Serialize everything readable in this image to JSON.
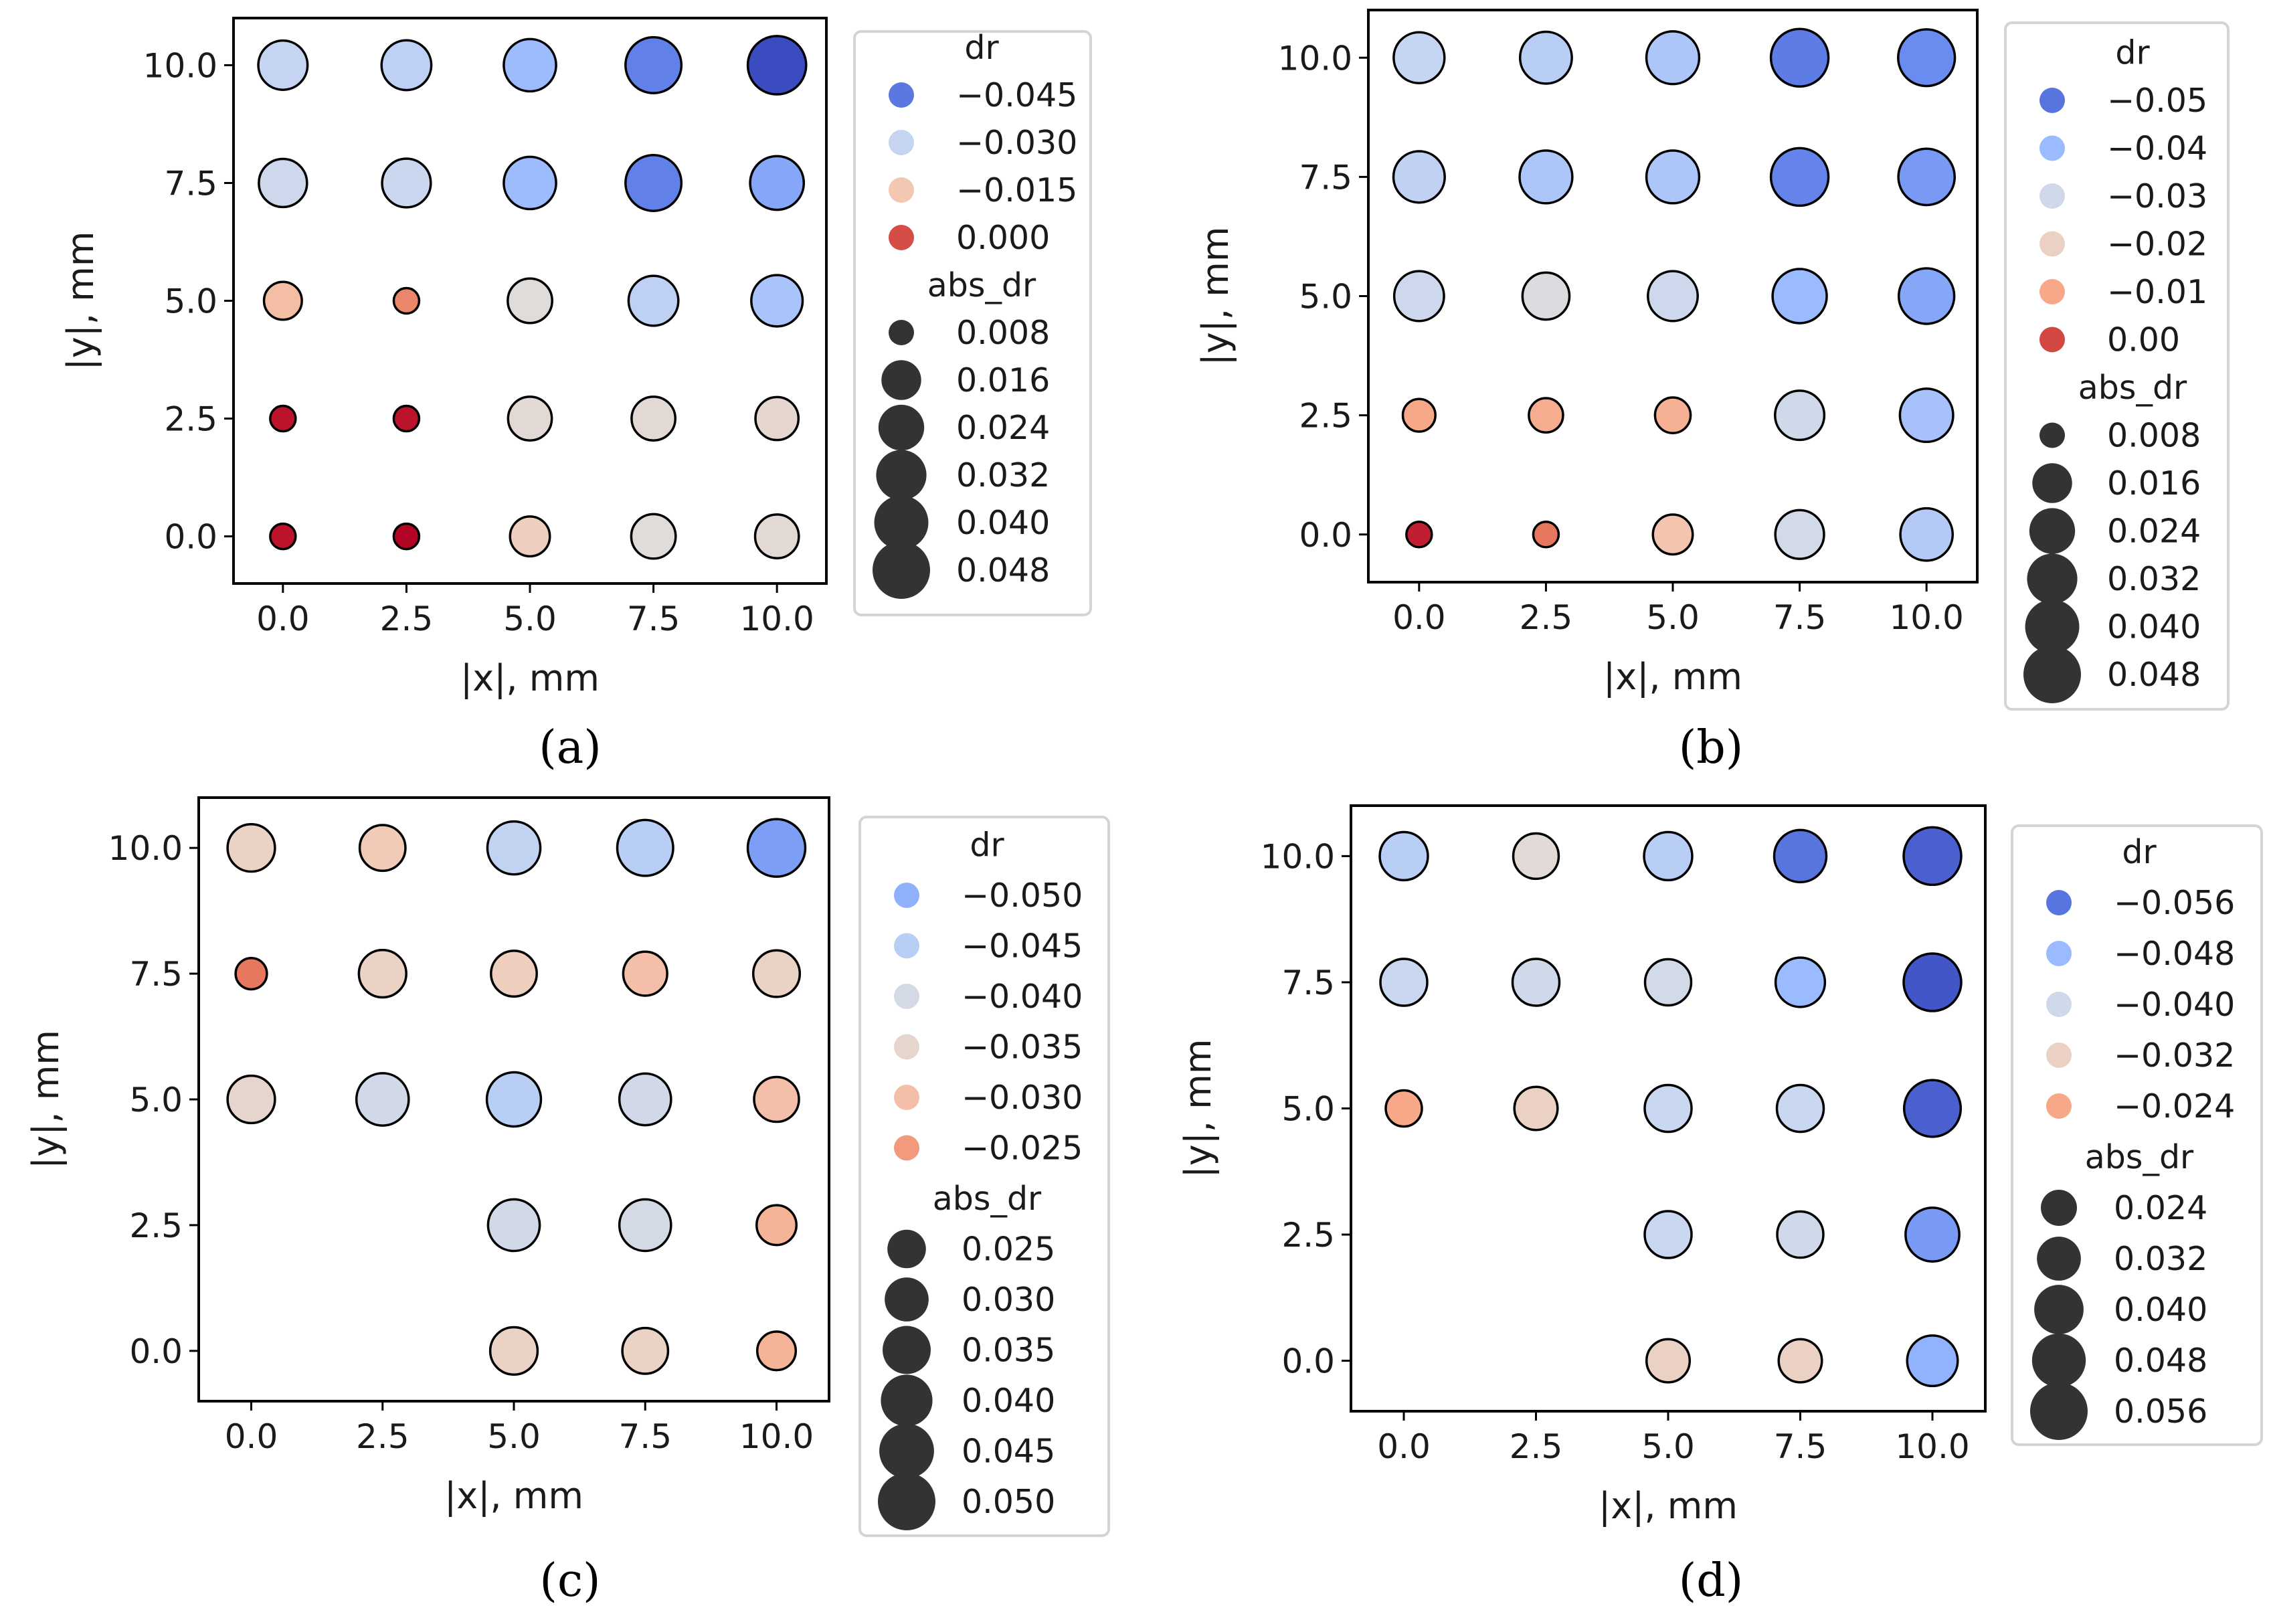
{
  "colormap": {
    "name": "coolwarm",
    "stops": [
      "#3b4cc0",
      "#6788ee",
      "#9abbff",
      "#c9d7f0",
      "#dddddd",
      "#f2cbb7",
      "#f7a889",
      "#e26952",
      "#b40426"
    ]
  },
  "chart_data": [
    {
      "type": "scatter",
      "panel_label": "(a)",
      "xlabel": "|x|, mm",
      "ylabel": "|y|, mm",
      "xticks": [
        "0.0",
        "2.5",
        "5.0",
        "7.5",
        "10.0"
      ],
      "yticks": [
        "0.0",
        "2.5",
        "5.0",
        "7.5",
        "10.0"
      ],
      "xlim": [
        -1,
        11
      ],
      "ylim": [
        -1,
        11
      ],
      "dr_range": [
        -0.05,
        0.005
      ],
      "size_range": [
        0.008,
        0.048
      ],
      "points": [
        {
          "x": 0,
          "y": 10,
          "dr": -0.03,
          "abs_dr": 0.03
        },
        {
          "x": 2.5,
          "y": 10,
          "dr": -0.031,
          "abs_dr": 0.031
        },
        {
          "x": 5,
          "y": 10,
          "dr": -0.036,
          "abs_dr": 0.036
        },
        {
          "x": 7.5,
          "y": 10,
          "dr": -0.044,
          "abs_dr": 0.044
        },
        {
          "x": 10,
          "y": 10,
          "dr": -0.05,
          "abs_dr": 0.05
        },
        {
          "x": 0,
          "y": 7.5,
          "dr": -0.028,
          "abs_dr": 0.028
        },
        {
          "x": 2.5,
          "y": 7.5,
          "dr": -0.029,
          "abs_dr": 0.029
        },
        {
          "x": 5,
          "y": 7.5,
          "dr": -0.036,
          "abs_dr": 0.036
        },
        {
          "x": 7.5,
          "y": 7.5,
          "dr": -0.044,
          "abs_dr": 0.044
        },
        {
          "x": 10,
          "y": 7.5,
          "dr": -0.039,
          "abs_dr": 0.039
        },
        {
          "x": 0,
          "y": 5,
          "dr": -0.013,
          "abs_dr": 0.014
        },
        {
          "x": 2.5,
          "y": 5,
          "dr": -0.005,
          "abs_dr": 0.006
        },
        {
          "x": 5,
          "y": 5,
          "dr": -0.022,
          "abs_dr": 0.022
        },
        {
          "x": 7.5,
          "y": 5,
          "dr": -0.031,
          "abs_dr": 0.031
        },
        {
          "x": 10,
          "y": 5,
          "dr": -0.034,
          "abs_dr": 0.034
        },
        {
          "x": 0,
          "y": 2.5,
          "dr": 0.004,
          "abs_dr": 0.004
        },
        {
          "x": 2.5,
          "y": 2.5,
          "dr": 0.004,
          "abs_dr": 0.004
        },
        {
          "x": 5,
          "y": 2.5,
          "dr": -0.021,
          "abs_dr": 0.021
        },
        {
          "x": 7.5,
          "y": 2.5,
          "dr": -0.021,
          "abs_dr": 0.021
        },
        {
          "x": 10,
          "y": 2.5,
          "dr": -0.02,
          "abs_dr": 0.02
        },
        {
          "x": 0,
          "y": 0,
          "dr": 0.004,
          "abs_dr": 0.004
        },
        {
          "x": 2.5,
          "y": 0,
          "dr": 0.006,
          "abs_dr": 0.006
        },
        {
          "x": 5,
          "y": 0,
          "dr": -0.017,
          "abs_dr": 0.016
        },
        {
          "x": 7.5,
          "y": 0,
          "dr": -0.022,
          "abs_dr": 0.022
        },
        {
          "x": 10,
          "y": 0,
          "dr": -0.021,
          "abs_dr": 0.021
        }
      ],
      "legend": {
        "color_title": "dr",
        "color_entries": [
          {
            "label": "−0.045",
            "dr": -0.045
          },
          {
            "label": "−0.030",
            "dr": -0.03
          },
          {
            "label": "−0.015",
            "dr": -0.015
          },
          {
            "label": "0.000",
            "dr": 0.0
          }
        ],
        "size_title": "abs_dr",
        "size_entries": [
          {
            "label": "0.008",
            "value": 0.008
          },
          {
            "label": "0.016",
            "value": 0.016
          },
          {
            "label": "0.024",
            "value": 0.024
          },
          {
            "label": "0.032",
            "value": 0.032
          },
          {
            "label": "0.040",
            "value": 0.04
          },
          {
            "label": "0.048",
            "value": 0.048
          }
        ]
      }
    },
    {
      "type": "scatter",
      "panel_label": "(b)",
      "xlabel": "|x|, mm",
      "ylabel": "|y|, mm",
      "xticks": [
        "0.0",
        "2.5",
        "5.0",
        "7.5",
        "10.0"
      ],
      "yticks": [
        "0.0",
        "2.5",
        "5.0",
        "7.5",
        "10.0"
      ],
      "xlim": [
        -1,
        11
      ],
      "ylim": [
        -1,
        11
      ],
      "dr_range": [
        -0.055,
        0.005
      ],
      "size_range": [
        0.008,
        0.048
      ],
      "points": [
        {
          "x": 0,
          "y": 10,
          "dr": -0.033,
          "abs_dr": 0.033
        },
        {
          "x": 2.5,
          "y": 10,
          "dr": -0.035,
          "abs_dr": 0.035
        },
        {
          "x": 5,
          "y": 10,
          "dr": -0.037,
          "abs_dr": 0.037
        },
        {
          "x": 7.5,
          "y": 10,
          "dr": -0.049,
          "abs_dr": 0.048
        },
        {
          "x": 10,
          "y": 10,
          "dr": -0.047,
          "abs_dr": 0.046
        },
        {
          "x": 0,
          "y": 7.5,
          "dr": -0.034,
          "abs_dr": 0.034
        },
        {
          "x": 2.5,
          "y": 7.5,
          "dr": -0.037,
          "abs_dr": 0.037
        },
        {
          "x": 5,
          "y": 7.5,
          "dr": -0.037,
          "abs_dr": 0.037
        },
        {
          "x": 7.5,
          "y": 7.5,
          "dr": -0.048,
          "abs_dr": 0.048
        },
        {
          "x": 10,
          "y": 7.5,
          "dr": -0.045,
          "abs_dr": 0.045
        },
        {
          "x": 0,
          "y": 5,
          "dr": -0.031,
          "abs_dr": 0.031
        },
        {
          "x": 2.5,
          "y": 5,
          "dr": -0.026,
          "abs_dr": 0.026
        },
        {
          "x": 5,
          "y": 5,
          "dr": -0.031,
          "abs_dr": 0.031
        },
        {
          "x": 7.5,
          "y": 5,
          "dr": -0.04,
          "abs_dr": 0.04
        },
        {
          "x": 10,
          "y": 5,
          "dr": -0.043,
          "abs_dr": 0.043
        },
        {
          "x": 0,
          "y": 2.5,
          "dr": -0.01,
          "abs_dr": 0.01
        },
        {
          "x": 2.5,
          "y": 2.5,
          "dr": -0.011,
          "abs_dr": 0.011
        },
        {
          "x": 5,
          "y": 2.5,
          "dr": -0.012,
          "abs_dr": 0.012
        },
        {
          "x": 7.5,
          "y": 2.5,
          "dr": -0.03,
          "abs_dr": 0.03
        },
        {
          "x": 10,
          "y": 2.5,
          "dr": -0.038,
          "abs_dr": 0.038
        },
        {
          "x": 0,
          "y": 0,
          "dr": 0.003,
          "abs_dr": 0.004
        },
        {
          "x": 2.5,
          "y": 0,
          "dr": -0.004,
          "abs_dr": 0.004
        },
        {
          "x": 5,
          "y": 0,
          "dr": -0.016,
          "abs_dr": 0.016
        },
        {
          "x": 7.5,
          "y": 0,
          "dr": -0.029,
          "abs_dr": 0.029
        },
        {
          "x": 10,
          "y": 0,
          "dr": -0.036,
          "abs_dr": 0.036
        }
      ],
      "legend": {
        "color_title": "dr",
        "color_entries": [
          {
            "label": "−0.05",
            "dr": -0.05
          },
          {
            "label": "−0.04",
            "dr": -0.04
          },
          {
            "label": "−0.03",
            "dr": -0.03
          },
          {
            "label": "−0.02",
            "dr": -0.02
          },
          {
            "label": "−0.01",
            "dr": -0.01
          },
          {
            "label": "0.00",
            "dr": 0.0
          }
        ],
        "size_title": "abs_dr",
        "size_entries": [
          {
            "label": "0.008",
            "value": 0.008
          },
          {
            "label": "0.016",
            "value": 0.016
          },
          {
            "label": "0.024",
            "value": 0.024
          },
          {
            "label": "0.032",
            "value": 0.032
          },
          {
            "label": "0.040",
            "value": 0.04
          },
          {
            "label": "0.048",
            "value": 0.048
          }
        ]
      }
    },
    {
      "type": "scatter",
      "panel_label": "(c)",
      "xlabel": "|x|, mm",
      "ylabel": "|y|, mm",
      "xticks": [
        "0.0",
        "2.5",
        "5.0",
        "7.5",
        "10.0"
      ],
      "yticks": [
        "0.0",
        "2.5",
        "5.0",
        "7.5",
        "10.0"
      ],
      "xlim": [
        -1,
        11
      ],
      "ylim": [
        -1,
        11
      ],
      "dr_range": [
        -0.06,
        -0.015
      ],
      "size_range": [
        0.02,
        0.05
      ],
      "points": [
        {
          "x": 0,
          "y": 10,
          "dr": -0.034,
          "abs_dr": 0.034
        },
        {
          "x": 2.5,
          "y": 10,
          "dr": -0.032,
          "abs_dr": 0.032
        },
        {
          "x": 5,
          "y": 10,
          "dr": -0.044,
          "abs_dr": 0.042
        },
        {
          "x": 7.5,
          "y": 10,
          "dr": -0.045,
          "abs_dr": 0.047
        },
        {
          "x": 10,
          "y": 10,
          "dr": -0.052,
          "abs_dr": 0.05
        },
        {
          "x": 0,
          "y": 7.5,
          "dr": -0.022,
          "abs_dr": 0.021
        },
        {
          "x": 2.5,
          "y": 7.5,
          "dr": -0.034,
          "abs_dr": 0.034
        },
        {
          "x": 5,
          "y": 7.5,
          "dr": -0.033,
          "abs_dr": 0.032
        },
        {
          "x": 7.5,
          "y": 7.5,
          "dr": -0.03,
          "abs_dr": 0.03
        },
        {
          "x": 10,
          "y": 7.5,
          "dr": -0.034,
          "abs_dr": 0.033
        },
        {
          "x": 0,
          "y": 5,
          "dr": -0.035,
          "abs_dr": 0.034
        },
        {
          "x": 2.5,
          "y": 5,
          "dr": -0.041,
          "abs_dr": 0.041
        },
        {
          "x": 5,
          "y": 5,
          "dr": -0.045,
          "abs_dr": 0.044
        },
        {
          "x": 7.5,
          "y": 5,
          "dr": -0.041,
          "abs_dr": 0.04
        },
        {
          "x": 10,
          "y": 5,
          "dr": -0.03,
          "abs_dr": 0.031
        },
        {
          "x": 5,
          "y": 2.5,
          "dr": -0.041,
          "abs_dr": 0.04
        },
        {
          "x": 7.5,
          "y": 2.5,
          "dr": -0.04,
          "abs_dr": 0.04
        },
        {
          "x": 10,
          "y": 2.5,
          "dr": -0.028,
          "abs_dr": 0.026
        },
        {
          "x": 5,
          "y": 0,
          "dr": -0.034,
          "abs_dr": 0.034
        },
        {
          "x": 7.5,
          "y": 0,
          "dr": -0.034,
          "abs_dr": 0.032
        },
        {
          "x": 10,
          "y": 0,
          "dr": -0.028,
          "abs_dr": 0.025
        }
      ],
      "legend": {
        "color_title": "dr",
        "color_entries": [
          {
            "label": "−0.050",
            "dr": -0.05
          },
          {
            "label": "−0.045",
            "dr": -0.045
          },
          {
            "label": "−0.040",
            "dr": -0.04
          },
          {
            "label": "−0.035",
            "dr": -0.035
          },
          {
            "label": "−0.030",
            "dr": -0.03
          },
          {
            "label": "−0.025",
            "dr": -0.025
          }
        ],
        "size_title": "abs_dr",
        "size_entries": [
          {
            "label": "0.025",
            "value": 0.025
          },
          {
            "label": "0.030",
            "value": 0.03
          },
          {
            "label": "0.035",
            "value": 0.035
          },
          {
            "label": "0.040",
            "value": 0.04
          },
          {
            "label": "0.045",
            "value": 0.045
          },
          {
            "label": "0.050",
            "value": 0.05
          }
        ]
      }
    },
    {
      "type": "scatter",
      "panel_label": "(d)",
      "xlabel": "|x|, mm",
      "ylabel": "|y|, mm",
      "xticks": [
        "0.0",
        "2.5",
        "5.0",
        "7.5",
        "10.0"
      ],
      "yticks": [
        "0.0",
        "2.5",
        "5.0",
        "7.5",
        "10.0"
      ],
      "xlim": [
        -1,
        11
      ],
      "ylim": [
        -1,
        11
      ],
      "dr_range": [
        -0.06,
        -0.012
      ],
      "size_range": [
        0.02,
        0.056
      ],
      "points": [
        {
          "x": 0,
          "y": 10,
          "dr": -0.044,
          "abs_dr": 0.038
        },
        {
          "x": 2.5,
          "y": 10,
          "dr": -0.035,
          "abs_dr": 0.034
        },
        {
          "x": 5,
          "y": 10,
          "dr": -0.044,
          "abs_dr": 0.038
        },
        {
          "x": 7.5,
          "y": 10,
          "dr": -0.056,
          "abs_dr": 0.045
        },
        {
          "x": 10,
          "y": 10,
          "dr": -0.058,
          "abs_dr": 0.056
        },
        {
          "x": 0,
          "y": 7.5,
          "dr": -0.042,
          "abs_dr": 0.036
        },
        {
          "x": 2.5,
          "y": 7.5,
          "dr": -0.04,
          "abs_dr": 0.036
        },
        {
          "x": 5,
          "y": 7.5,
          "dr": -0.039,
          "abs_dr": 0.035
        },
        {
          "x": 7.5,
          "y": 7.5,
          "dr": -0.048,
          "abs_dr": 0.04
        },
        {
          "x": 10,
          "y": 7.5,
          "dr": -0.059,
          "abs_dr": 0.056
        },
        {
          "x": 0,
          "y": 5,
          "dr": -0.024,
          "abs_dr": 0.024
        },
        {
          "x": 2.5,
          "y": 5,
          "dr": -0.032,
          "abs_dr": 0.031
        },
        {
          "x": 5,
          "y": 5,
          "dr": -0.042,
          "abs_dr": 0.036
        },
        {
          "x": 7.5,
          "y": 5,
          "dr": -0.042,
          "abs_dr": 0.036
        },
        {
          "x": 10,
          "y": 5,
          "dr": -0.058,
          "abs_dr": 0.054
        },
        {
          "x": 5,
          "y": 2.5,
          "dr": -0.042,
          "abs_dr": 0.036
        },
        {
          "x": 7.5,
          "y": 2.5,
          "dr": -0.04,
          "abs_dr": 0.035
        },
        {
          "x": 10,
          "y": 2.5,
          "dr": -0.052,
          "abs_dr": 0.048
        },
        {
          "x": 5,
          "y": 0,
          "dr": -0.032,
          "abs_dr": 0.031
        },
        {
          "x": 7.5,
          "y": 0,
          "dr": -0.032,
          "abs_dr": 0.031
        },
        {
          "x": 10,
          "y": 0,
          "dr": -0.049,
          "abs_dr": 0.042
        }
      ],
      "legend": {
        "color_title": "dr",
        "color_entries": [
          {
            "label": "−0.056",
            "dr": -0.056
          },
          {
            "label": "−0.048",
            "dr": -0.048
          },
          {
            "label": "−0.040",
            "dr": -0.04
          },
          {
            "label": "−0.032",
            "dr": -0.032
          },
          {
            "label": "−0.024",
            "dr": -0.024
          }
        ],
        "size_title": "abs_dr",
        "size_entries": [
          {
            "label": "0.024",
            "value": 0.024
          },
          {
            "label": "0.032",
            "value": 0.032
          },
          {
            "label": "0.040",
            "value": 0.04
          },
          {
            "label": "0.048",
            "value": 0.048
          },
          {
            "label": "0.056",
            "value": 0.056
          }
        ]
      }
    }
  ]
}
